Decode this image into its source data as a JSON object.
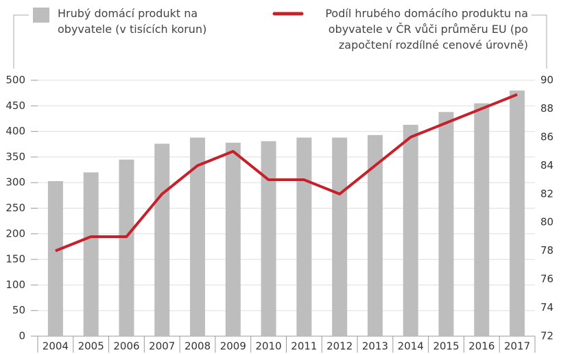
{
  "chart_data": {
    "type": "combo",
    "categories": [
      "2004",
      "2005",
      "2006",
      "2007",
      "2008",
      "2009",
      "2010",
      "2011",
      "2012",
      "2013",
      "2014",
      "2015",
      "2016",
      "2017"
    ],
    "series": [
      {
        "name": "Hrubý domácí produkt na obyvatele (v tisících korun)",
        "type": "bar",
        "color": "#bdbdbe",
        "values": [
          303,
          320,
          345,
          376,
          388,
          378,
          381,
          388,
          388,
          393,
          413,
          438,
          455,
          480
        ]
      },
      {
        "name": "Podíl hrubého domácího produktu na obyvatele v ČR vůči průměru EU (po započtení rozdílné cenové úrovně)",
        "type": "line",
        "axis": "y2",
        "color": "#c8202a",
        "values": [
          78,
          79,
          79,
          82,
          84,
          85,
          83,
          83,
          82,
          84,
          86,
          87,
          88,
          89
        ]
      }
    ],
    "ylim": [
      0,
      500
    ],
    "yticks": [
      0,
      50,
      100,
      150,
      200,
      250,
      300,
      350,
      400,
      450,
      500
    ],
    "y2lim": [
      72,
      90
    ],
    "y2ticks": [
      72,
      74,
      76,
      78,
      80,
      82,
      84,
      86,
      88,
      90
    ],
    "grid": true
  }
}
